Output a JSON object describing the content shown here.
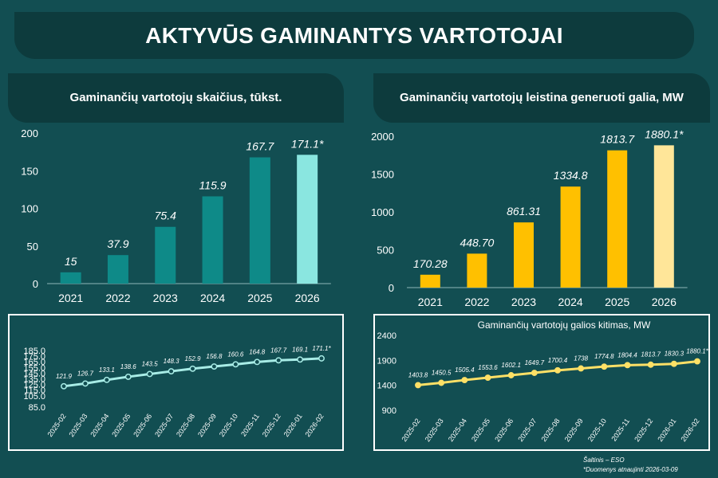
{
  "title": "AKTYVŪS GAMINANTYS VARTOTOJAI",
  "colors": {
    "background": "#124e52",
    "banner": "#0d3b3d",
    "teal_bar": "#0e8a88",
    "teal_bar_highlight": "#8ae6e0",
    "yellow_bar": "#ffc000",
    "yellow_bar_highlight": "#ffe699",
    "teal_line": "#a8ece6",
    "yellow_line": "#ffe066"
  },
  "footnotes": {
    "source": "Šaltinis – ESO",
    "updated": "*Duomenys atnaujinti 2026-03-09"
  },
  "chart_data": [
    {
      "id": "consumers_count",
      "type": "bar",
      "title": "Gaminančių vartotojų skaičius, tūkst.",
      "categories": [
        "2021",
        "2022",
        "2023",
        "2024",
        "2025",
        "2026"
      ],
      "values": [
        15,
        37.9,
        75.4,
        115.9,
        167.7,
        171.1
      ],
      "data_labels": [
        "15",
        "37.9",
        "75.4",
        "115.9",
        "167.7",
        "171.1*"
      ],
      "highlight_index": 5,
      "ylim": [
        0,
        200
      ],
      "yticks": [
        "0",
        "50",
        "100",
        "150",
        "200"
      ],
      "grid": false
    },
    {
      "id": "capacity_mw",
      "type": "bar",
      "title": "Gaminančių vartotojų leistina generuoti galia, MW",
      "categories": [
        "2021",
        "2022",
        "2023",
        "2024",
        "2025",
        "2026"
      ],
      "values": [
        170.28,
        448.7,
        861.31,
        1334.8,
        1813.7,
        1880.1
      ],
      "data_labels": [
        "170.28",
        "448.70",
        "861.31",
        "1334.8",
        "1813.7",
        "1880.1*"
      ],
      "highlight_index": 5,
      "ylim": [
        0,
        2000
      ],
      "yticks": [
        "0",
        "500",
        "1000",
        "1500",
        "2000"
      ],
      "grid": false
    },
    {
      "id": "consumers_monthly",
      "type": "line",
      "title": "",
      "categories": [
        "2025-02",
        "2025-03",
        "2025-04",
        "2025-05",
        "2025-06",
        "2025-07",
        "2025-08",
        "2025-09",
        "2025-10",
        "2025-11",
        "2025-12",
        "2026-01",
        "2026-02"
      ],
      "values": [
        121.9,
        126.7,
        133.1,
        138.6,
        143.5,
        148.3,
        152.9,
        156.8,
        160.6,
        164.8,
        167.7,
        169.1,
        171.1
      ],
      "data_labels": [
        "121.9",
        "126.7",
        "133.1",
        "138.6",
        "143.5",
        "148.3",
        "152.9",
        "156.8",
        "160.6",
        "164.8",
        "167.7",
        "169.1",
        "171.1*"
      ],
      "ylim": [
        85,
        185
      ],
      "yticks": [
        "85.0",
        "105.0",
        "115.0",
        "125.0",
        "135.0",
        "145.0",
        "155.0",
        "165.0",
        "175.0",
        "185.0"
      ],
      "grid": false
    },
    {
      "id": "capacity_monthly",
      "type": "line",
      "title": "Gaminančių vartotojų galios kitimas, MW",
      "categories": [
        "2025-02",
        "2025-03",
        "2025-04",
        "2025-05",
        "2025-06",
        "2025-07",
        "2025-08",
        "2025-09",
        "2025-10",
        "2025-11",
        "2025-12",
        "2026-01",
        "2026-02"
      ],
      "values": [
        1403.8,
        1450.5,
        1505.4,
        1553.6,
        1602.1,
        1649.7,
        1700.4,
        1738,
        1774.8,
        1804.4,
        1813.7,
        1830.3,
        1880.1
      ],
      "data_labels": [
        "1403.8",
        "1450.5",
        "1505.4",
        "1553.6",
        "1602.1",
        "1649.7",
        "1700.4",
        "1738",
        "1774.8",
        "1804.4",
        "1813.7",
        "1830.3",
        "1880.1*"
      ],
      "ylim": [
        900,
        2400
      ],
      "yticks": [
        "900",
        "1400",
        "1900",
        "2400"
      ],
      "grid": false
    }
  ]
}
